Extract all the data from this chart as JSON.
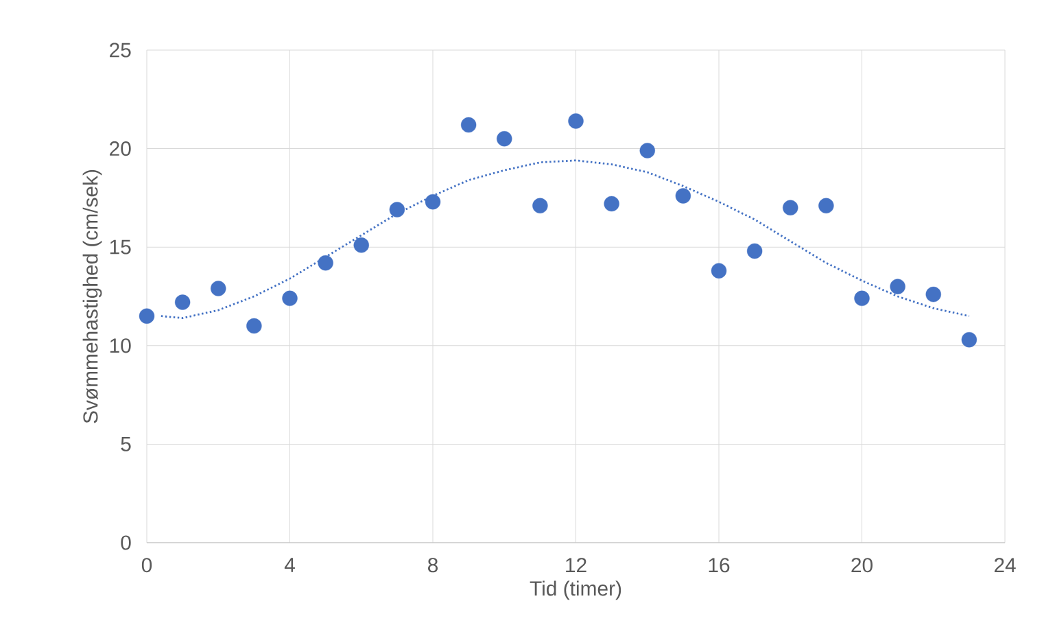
{
  "chart_data": {
    "type": "scatter",
    "xlabel": "Tid (timer)",
    "ylabel": "Svømmehastighed (cm/sek)",
    "x": [
      0,
      1,
      2,
      3,
      4,
      5,
      6,
      7,
      8,
      9,
      10,
      11,
      12,
      13,
      14,
      15,
      16,
      17,
      18,
      19,
      20,
      21,
      22,
      23
    ],
    "series": [
      {
        "color": "#4472c4",
        "marker": "circle",
        "values": [
          11.5,
          12.2,
          12.9,
          11.0,
          12.4,
          14.2,
          15.1,
          16.9,
          17.3,
          21.2,
          20.5,
          17.1,
          21.4,
          17.2,
          19.9,
          17.6,
          13.8,
          14.8,
          17.0,
          17.1,
          12.4,
          13.0,
          12.6,
          10.3
        ]
      },
      {
        "type": "line",
        "color": "#4472c4",
        "marker": "none",
        "line_style": "dotted",
        "x": [
          0.4,
          1,
          2,
          3,
          4,
          5,
          6,
          7,
          8,
          9,
          10,
          11,
          12,
          13,
          14,
          15,
          16,
          17,
          18,
          19,
          20,
          21,
          22,
          23
        ],
        "values": [
          11.5,
          11.4,
          11.8,
          12.5,
          13.4,
          14.5,
          15.6,
          16.7,
          17.6,
          18.4,
          18.9,
          19.3,
          19.4,
          19.2,
          18.8,
          18.1,
          17.3,
          16.4,
          15.3,
          14.2,
          13.3,
          12.5,
          11.9,
          11.5
        ]
      }
    ],
    "xlim": [
      0,
      24
    ],
    "xticks": [
      0,
      4,
      8,
      12,
      16,
      20,
      24
    ],
    "ylim": [
      0,
      25
    ],
    "yticks": [
      0,
      5,
      10,
      15,
      20,
      25
    ],
    "grid": true
  }
}
